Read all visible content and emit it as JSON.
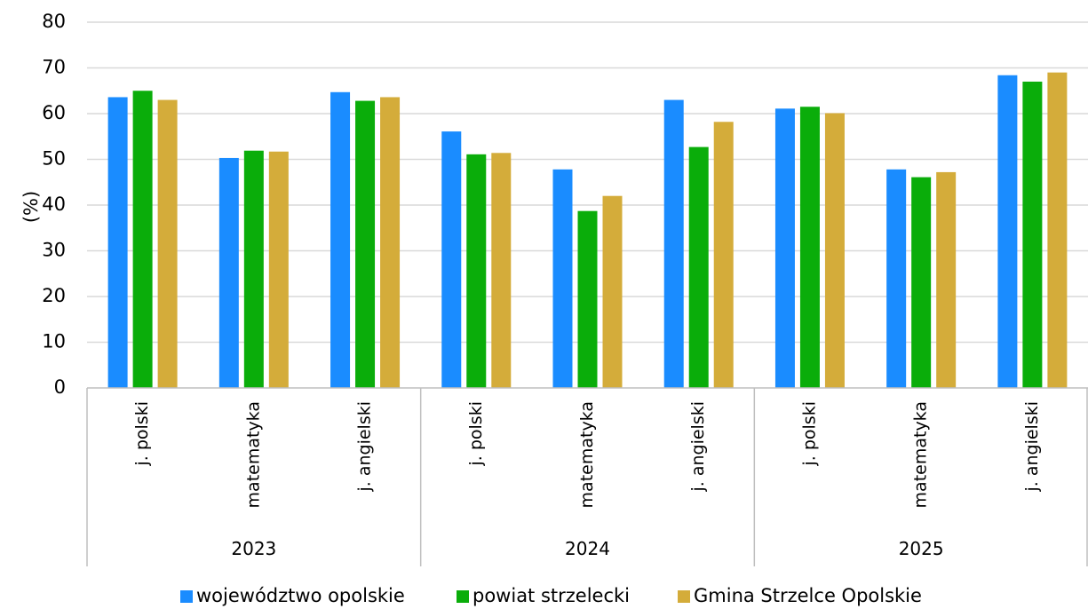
{
  "chart_data": {
    "type": "bar",
    "ylabel": "(%)",
    "ylim": [
      0,
      80
    ],
    "yticks": [
      "0",
      "10",
      "20",
      "30",
      "40",
      "50",
      "60",
      "70",
      "80"
    ],
    "grid": true,
    "legend_position": "bottom",
    "groups": [
      "2023",
      "2024",
      "2025"
    ],
    "categories": [
      "j. polski",
      "matematyka",
      "j. angielski",
      "j. polski",
      "matematyka",
      "j. angielski",
      "j. polski",
      "matematyka",
      "j. angielski"
    ],
    "series": [
      {
        "name": "województwo opolskie",
        "color": "#1a8cff",
        "values": [
          63.6,
          50.3,
          64.7,
          56.1,
          47.8,
          63.0,
          61.1,
          47.8,
          68.4
        ]
      },
      {
        "name": "powiat strzelecki",
        "color": "#0aad0a",
        "values": [
          65.0,
          51.9,
          62.8,
          51.1,
          38.7,
          52.7,
          61.5,
          46.1,
          67.0
        ]
      },
      {
        "name": "Gmina Strzelce Opolskie",
        "color": "#d4ac3a",
        "values": [
          63.0,
          51.7,
          63.6,
          51.4,
          42.0,
          58.2,
          60.1,
          47.2,
          69.0
        ]
      }
    ]
  }
}
